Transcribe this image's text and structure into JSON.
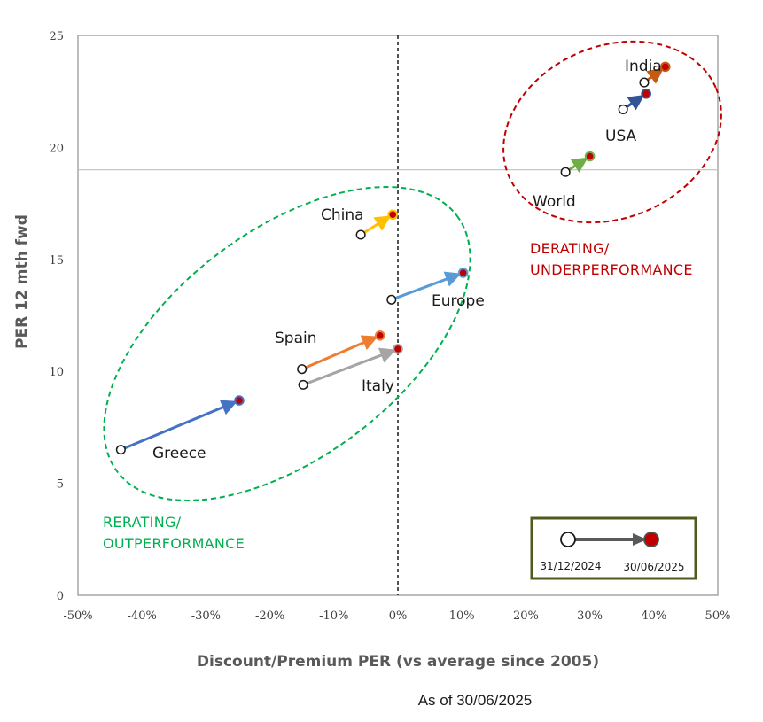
{
  "chart_data": {
    "type": "scatter",
    "xlabel": "Discount/Premium PER (vs average since 2005)",
    "ylabel": "PER 12 mth fwd",
    "x_unit": "percent",
    "xlim": [
      -50,
      50
    ],
    "ylim": [
      0,
      25
    ],
    "x_ticks": [
      -50,
      -40,
      -30,
      -20,
      -10,
      0,
      10,
      20,
      30,
      40,
      50
    ],
    "x_tick_labels": [
      "-50%",
      "-40%",
      "-30%",
      "-20%",
      "-10%",
      "0%",
      "10%",
      "20%",
      "30%",
      "40%",
      "50%"
    ],
    "y_ticks": [
      0,
      5,
      10,
      15,
      20,
      25
    ],
    "y_tick_labels": [
      "0",
      "5",
      "10",
      "15",
      "20",
      "25"
    ],
    "grid": false,
    "reference_lines": {
      "vertical_x": 0,
      "horizontal_y": 19
    },
    "note": "As of 30/06/2025",
    "series": [
      {
        "name": "India",
        "start": {
          "x": 38.5,
          "y": 22.9
        },
        "end": {
          "x": 41.8,
          "y": 23.6
        },
        "color": "#C55A11"
      },
      {
        "name": "USA",
        "start": {
          "x": 35.2,
          "y": 21.7
        },
        "end": {
          "x": 38.8,
          "y": 22.4
        },
        "color": "#2F5597"
      },
      {
        "name": "World",
        "start": {
          "x": 26.2,
          "y": 18.9
        },
        "end": {
          "x": 30.0,
          "y": 19.6
        },
        "color": "#70AD47"
      },
      {
        "name": "China",
        "start": {
          "x": -5.8,
          "y": 16.1
        },
        "end": {
          "x": -0.8,
          "y": 17.0
        },
        "color": "#FFC000"
      },
      {
        "name": "Europe",
        "start": {
          "x": -1.0,
          "y": 13.2
        },
        "end": {
          "x": 10.2,
          "y": 14.4
        },
        "color": "#5B9BD5"
      },
      {
        "name": "Spain",
        "start": {
          "x": -15.0,
          "y": 10.1
        },
        "end": {
          "x": -2.8,
          "y": 11.6
        },
        "color": "#ED7D31"
      },
      {
        "name": "Italy",
        "start": {
          "x": -14.8,
          "y": 9.4
        },
        "end": {
          "x": 0.0,
          "y": 11.0
        },
        "color": "#A5A5A5"
      },
      {
        "name": "Greece",
        "start": {
          "x": -43.3,
          "y": 6.5
        },
        "end": {
          "x": -24.8,
          "y": 8.7
        },
        "color": "#4472C4"
      }
    ],
    "zones": [
      {
        "label_lines": [
          "DERATING/",
          "UNDERPERFORMANCE"
        ],
        "color": "#C00000"
      },
      {
        "label_lines": [
          "RERATING/",
          "OUTPERFORMANCE"
        ],
        "color": "#00B050"
      }
    ],
    "legend": {
      "start_label": "31/12/2024",
      "end_label": "30/06/2025",
      "placement": "bottom-right"
    }
  }
}
